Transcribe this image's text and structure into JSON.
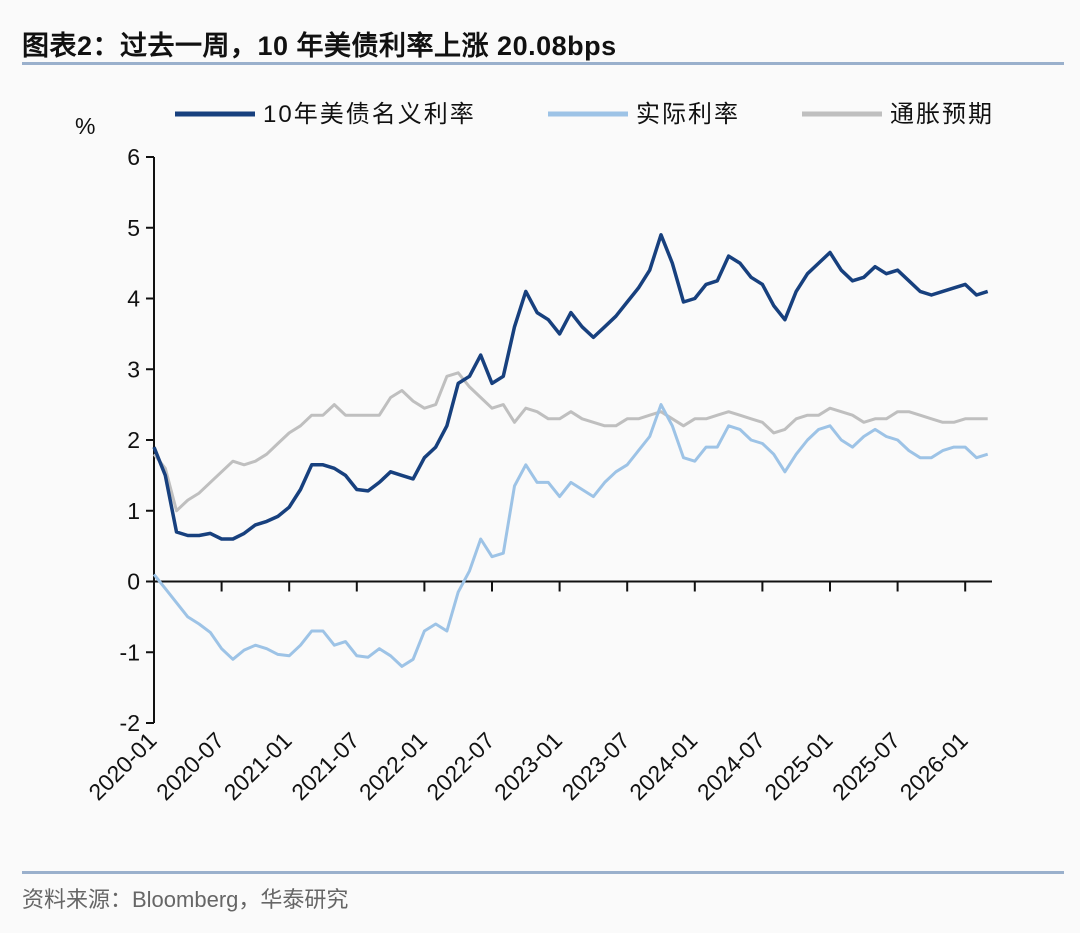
{
  "title": "图表2：过去一周，10 年美债利率上涨 20.08bps",
  "source": "资料来源：Bloomberg，华泰研究",
  "chart_data": {
    "type": "line",
    "ylabel": "%",
    "ylim": [
      -2,
      6
    ],
    "yticks": [
      "6",
      "5",
      "4",
      "3",
      "2",
      "1",
      "0",
      "-1",
      "-2"
    ],
    "yvals": [
      6,
      5,
      4,
      3,
      2,
      1,
      0,
      -1,
      -2
    ],
    "xticks": [
      "2020-01",
      "2020-07",
      "2021-01",
      "2021-07",
      "2022-01",
      "2022-07",
      "2023-01",
      "2023-07",
      "2024-01",
      "2024-07",
      "2025-01",
      "2025-07",
      "2026-01"
    ],
    "x_start": "2020-01",
    "x_step": "month",
    "legend_position": "top",
    "series": [
      {
        "name": "10年美债名义利率",
        "color": "#17407e",
        "values": [
          1.9,
          1.5,
          0.7,
          0.65,
          0.65,
          0.68,
          0.6,
          0.6,
          0.68,
          0.8,
          0.85,
          0.92,
          1.05,
          1.3,
          1.65,
          1.65,
          1.6,
          1.5,
          1.3,
          1.28,
          1.4,
          1.55,
          1.5,
          1.45,
          1.75,
          1.9,
          2.2,
          2.8,
          2.9,
          3.2,
          2.8,
          2.9,
          3.6,
          4.1,
          3.8,
          3.7,
          3.5,
          3.8,
          3.6,
          3.45,
          3.6,
          3.75,
          3.95,
          4.15,
          4.4,
          4.9,
          4.5,
          3.95,
          4.0,
          4.2,
          4.25,
          4.6,
          4.5,
          4.3,
          4.2,
          3.9,
          3.7,
          4.1,
          4.35,
          4.5,
          4.65,
          4.4,
          4.25,
          4.3,
          4.45,
          4.35,
          4.4,
          4.25,
          4.1,
          4.05,
          4.1,
          4.15,
          4.2,
          4.05,
          4.1
        ]
      },
      {
        "name": "实际利率",
        "color": "#9dc3e6",
        "values": [
          0.1,
          -0.1,
          -0.3,
          -0.5,
          -0.6,
          -0.72,
          -0.95,
          -1.1,
          -0.97,
          -0.9,
          -0.95,
          -1.03,
          -1.05,
          -0.9,
          -0.7,
          -0.7,
          -0.9,
          -0.85,
          -1.05,
          -1.07,
          -0.95,
          -1.05,
          -1.2,
          -1.1,
          -0.7,
          -0.6,
          -0.7,
          -0.15,
          0.15,
          0.6,
          0.35,
          0.4,
          1.35,
          1.65,
          1.4,
          1.4,
          1.2,
          1.4,
          1.3,
          1.2,
          1.4,
          1.55,
          1.65,
          1.85,
          2.05,
          2.5,
          2.2,
          1.75,
          1.7,
          1.9,
          1.9,
          2.2,
          2.15,
          2.0,
          1.95,
          1.8,
          1.55,
          1.8,
          2.0,
          2.15,
          2.2,
          2.0,
          1.9,
          2.05,
          2.15,
          2.05,
          2.0,
          1.85,
          1.75,
          1.75,
          1.85,
          1.9,
          1.9,
          1.75,
          1.8
        ]
      },
      {
        "name": "通胀预期",
        "color": "#bfbfbf",
        "values": [
          1.8,
          1.6,
          1.0,
          1.15,
          1.25,
          1.4,
          1.55,
          1.7,
          1.65,
          1.7,
          1.8,
          1.95,
          2.1,
          2.2,
          2.35,
          2.35,
          2.5,
          2.35,
          2.35,
          2.35,
          2.35,
          2.6,
          2.7,
          2.55,
          2.45,
          2.5,
          2.9,
          2.95,
          2.75,
          2.6,
          2.45,
          2.5,
          2.25,
          2.45,
          2.4,
          2.3,
          2.3,
          2.4,
          2.3,
          2.25,
          2.2,
          2.2,
          2.3,
          2.3,
          2.35,
          2.4,
          2.3,
          2.2,
          2.3,
          2.3,
          2.35,
          2.4,
          2.35,
          2.3,
          2.25,
          2.1,
          2.15,
          2.3,
          2.35,
          2.35,
          2.45,
          2.4,
          2.35,
          2.25,
          2.3,
          2.3,
          2.4,
          2.4,
          2.35,
          2.3,
          2.25,
          2.25,
          2.3,
          2.3,
          2.3
        ]
      }
    ]
  }
}
